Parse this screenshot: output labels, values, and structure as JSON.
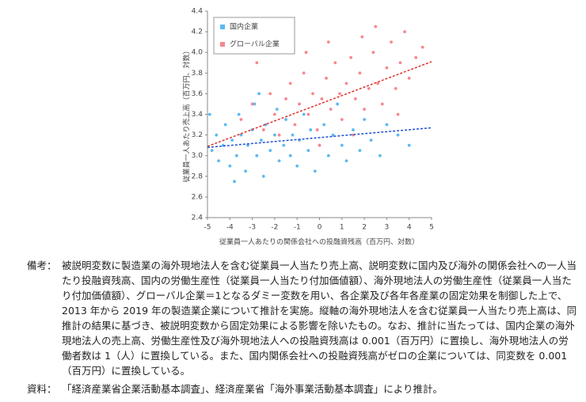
{
  "chart_data": {
    "type": "scatter",
    "x_label": "従業員一人あたりの関係会社への投融資残高（百万円、対数）",
    "y_label": "従業員一人あたり売上高（百万円、対数）",
    "xlim": [
      -5,
      5
    ],
    "xticks": [
      -5,
      -4,
      -3,
      -2,
      -1,
      0,
      1,
      2,
      3,
      4,
      5
    ],
    "ylim": [
      2.4,
      4.4
    ],
    "yticks": [
      {
        "value": 2.4,
        "label": "2.4"
      },
      {
        "value": 2.6,
        "label": "2.6"
      },
      {
        "value": 2.8,
        "label": "2.8"
      },
      {
        "value": 3.0,
        "label": "3.0"
      },
      {
        "value": 3.2,
        "label": "3.2"
      },
      {
        "value": 3.4,
        "label": "3.4"
      },
      {
        "value": 3.6,
        "label": "3.6"
      },
      {
        "value": 3.8,
        "label": "3.8"
      },
      {
        "value": 4.0,
        "label": "4.0"
      },
      {
        "value": 4.2,
        "label": "4.2"
      },
      {
        "value": 4.4,
        "label": "4.4"
      }
    ],
    "legend": "upper left",
    "series": [
      {
        "name": "国内企業",
        "color": "#5cb9f2",
        "trend_color": "#2150d0",
        "x": [
          -4.8,
          -4.6,
          -4.5,
          -4.3,
          -4.2,
          -4.0,
          -3.9,
          -3.7,
          -3.6,
          -3.5,
          -3.3,
          -3.2,
          -3.0,
          -2.9,
          -2.8,
          -2.6,
          -2.5,
          -2.4,
          -2.2,
          -2.0,
          -1.9,
          -1.8,
          -1.6,
          -1.5,
          -1.3,
          -1.2,
          -1.0,
          -0.9,
          -0.7,
          -0.5,
          -0.4,
          -0.2,
          0.0,
          0.2,
          0.4,
          0.6,
          0.8,
          1.0,
          1.2,
          1.5,
          1.8,
          2.0,
          2.3,
          2.7,
          3.0,
          3.5,
          4.0,
          -4.9,
          -3.8,
          -2.7
        ],
        "values": [
          3.05,
          3.2,
          2.95,
          3.1,
          3.3,
          2.9,
          3.15,
          3.0,
          3.4,
          3.2,
          2.85,
          3.1,
          3.25,
          3.5,
          3.0,
          3.15,
          2.8,
          3.3,
          3.05,
          3.2,
          3.45,
          2.95,
          3.1,
          3.35,
          3.0,
          3.2,
          2.9,
          3.15,
          3.4,
          3.05,
          3.25,
          2.85,
          3.1,
          3.3,
          3.0,
          3.2,
          3.5,
          3.1,
          2.95,
          3.25,
          3.05,
          3.35,
          3.15,
          3.0,
          3.3,
          3.2,
          3.1,
          3.4,
          2.75,
          3.6
        ],
        "trend": {
          "x": [
            -5,
            5
          ],
          "values": [
            3.08,
            3.27
          ]
        }
      },
      {
        "name": "グローバル企業",
        "color": "#f7878f",
        "trend_color": "#e0302a",
        "x": [
          -3.5,
          -3.0,
          -2.5,
          -2.2,
          -2.0,
          -1.8,
          -1.5,
          -1.3,
          -1.1,
          -0.9,
          -0.7,
          -0.5,
          -0.3,
          -0.1,
          0.1,
          0.3,
          0.5,
          0.7,
          0.9,
          1.0,
          1.2,
          1.4,
          1.6,
          1.8,
          2.0,
          2.2,
          2.4,
          2.6,
          2.8,
          3.0,
          3.2,
          3.4,
          3.6,
          3.8,
          4.0,
          4.3,
          4.6,
          -2.8,
          0.0,
          1.5,
          2.5,
          3.5,
          -0.6,
          0.4,
          1.9
        ],
        "values": [
          3.35,
          3.5,
          3.25,
          3.6,
          3.4,
          3.2,
          3.55,
          3.7,
          3.3,
          3.5,
          3.8,
          3.4,
          3.6,
          3.25,
          3.55,
          3.75,
          3.45,
          3.9,
          3.6,
          3.35,
          3.7,
          3.95,
          3.55,
          3.8,
          3.45,
          3.65,
          4.0,
          3.7,
          3.5,
          3.85,
          4.1,
          3.65,
          3.9,
          4.2,
          3.75,
          3.95,
          4.05,
          3.9,
          3.1,
          3.2,
          4.25,
          3.4,
          4.0,
          4.1,
          4.15
        ],
        "trend": {
          "x": [
            -5,
            5
          ],
          "values": [
            3.09,
            3.91
          ]
        }
      }
    ]
  },
  "notes": {
    "label": "備考：",
    "text": "被説明変数に製造業の海外現地法人を含む従業員一人当たり売上高、説明変数に国内及び海外の関係会社への一人当たり投融資残高、国内の労働生産性（従業員一人当たり付加価値額）、海外現地法人の労働生産性（従業員一人当たり付加価値額）、グローバル企業＝1となるダミー変数を用い、各企業及び各年各産業の固定効果を制御した上で、2013 年から 2019 年の製造業企業について推計を実施。縦軸の海外現地法人を含む従業員一人当たり売上高は、同推計の結果に基づき、被説明変数から固定効果による影響を除いたもの。なお、推計に当たっては、国内企業の海外現地法人の売上高、労働生産性及び海外現地法人への投融資残高は 0.001（百万円）に置換し、海外現地法人の労働者数は 1（人）に置換している。また、国内関係会社への投融資残高がゼロの企業については、同変数を 0.001（百万円）に置換している。"
  },
  "source": {
    "label": "資料：",
    "text": "「経済産業省企業活動基本調査」、経済産業省「海外事業活動基本調査」により推計。"
  }
}
